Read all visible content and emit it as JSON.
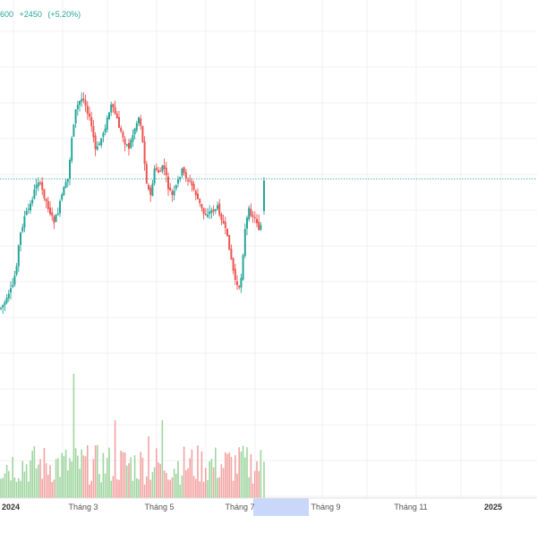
{
  "header": {
    "last_price_suffix": "600",
    "change": "+2450",
    "change_pct": "(+5.20%)"
  },
  "colors": {
    "up": "#26a69a",
    "down": "#ef5350",
    "volume_up": "#9fd6a0",
    "volume_down": "#f3a3a3",
    "grid": "#f0f0f0",
    "price_line": "#26a69a",
    "axis_highlight": "#c9d7fb"
  },
  "time_axis": [
    {
      "label": "2024",
      "bold": true
    },
    {
      "label": "Tháng 3",
      "bold": false
    },
    {
      "label": "Tháng 5",
      "bold": false
    },
    {
      "label": "Tháng 7",
      "bold": false
    },
    {
      "label": "Tháng 9",
      "bold": false
    },
    {
      "label": "Tháng 11",
      "bold": false
    },
    {
      "label": "2025",
      "bold": true
    }
  ],
  "chart_data": {
    "type": "candlestick",
    "price_range": [
      0,
      1
    ],
    "current_price_level": 0.595,
    "candles": []
  }
}
